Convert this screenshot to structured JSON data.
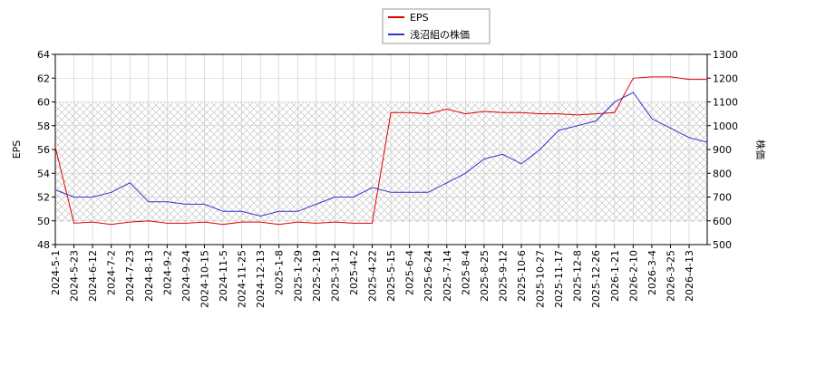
{
  "chart_data": {
    "type": "line",
    "categories": [
      "2024-5-1",
      "2024-5-23",
      "2024-6-12",
      "2024-7-2",
      "2024-7-23",
      "2024-8-13",
      "2024-9-2",
      "2024-9-24",
      "2024-10-15",
      "2024-11-5",
      "2024-11-25",
      "2024-12-13",
      "2025-1-8",
      "2025-1-29",
      "2025-2-19",
      "2025-3-12",
      "2025-4-2",
      "2025-4-22",
      "2025-5-15",
      "2025-6-4",
      "2025-6-24",
      "2025-7-14",
      "2025-8-4",
      "2025-8-25",
      "2025-9-12",
      "2025-10-6",
      "2025-10-27",
      "2025-11-17",
      "2025-12-8",
      "2025-12-26",
      "2026-1-21",
      "2026-2-10",
      "2026-3-4",
      "2026-3-25",
      "2026-4-13",
      null
    ],
    "series": [
      {
        "name": "EPS",
        "color": "#dd0000",
        "values": [
          56.2,
          49.8,
          49.9,
          49.7,
          49.9,
          50.0,
          49.8,
          49.8,
          49.9,
          49.7,
          49.9,
          49.9,
          49.7,
          49.9,
          49.8,
          49.9,
          49.8,
          49.8,
          59.1,
          59.1,
          59.0,
          59.4,
          59.0,
          59.2,
          59.1,
          59.1,
          59.0,
          59.0,
          58.9,
          59.0,
          59.1,
          62.0,
          62.1,
          62.1,
          61.9,
          61.9
        ]
      },
      {
        "name": "浅沼組の株価",
        "color": "#3333cc",
        "axis": "y2",
        "values": [
          730,
          700,
          700,
          720,
          760,
          680,
          680,
          670,
          670,
          640,
          640,
          620,
          640,
          640,
          670,
          700,
          700,
          740,
          720,
          720,
          720,
          760,
          800,
          860,
          880,
          840,
          900,
          980,
          1000,
          1020,
          1100,
          1140,
          1030,
          990,
          950,
          930
        ]
      }
    ],
    "ylabel": "EPS",
    "y2label": "株価",
    "ylim": [
      48,
      64
    ],
    "yticks": [
      48,
      50,
      52,
      54,
      56,
      58,
      60,
      62,
      64
    ],
    "y2lim": [
      500,
      1300
    ],
    "y2ticks": [
      500,
      600,
      700,
      800,
      900,
      1000,
      1100,
      1200,
      1300
    ],
    "grid": true,
    "legend": "top"
  }
}
